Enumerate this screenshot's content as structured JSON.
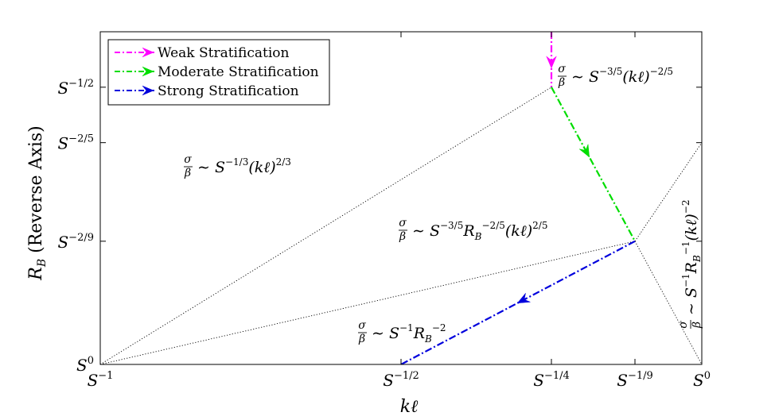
{
  "chart_data": {
    "type": "line",
    "title": "",
    "xlabel": "kℓ",
    "ylabel": "R_B (Reverse Axis)",
    "ylabel_parts": {
      "main": "R",
      "sub": "B",
      "rest": " (Reverse Axis)"
    },
    "x_scale": "log_S_exponent",
    "y_scale": "log_S_exponent_reversed",
    "xlim_exponent": [
      -1,
      0
    ],
    "ylim_exponent": [
      0,
      -0.6
    ],
    "x_ticks": [
      {
        "base": "S",
        "exp": "−1",
        "value": -1
      },
      {
        "base": "S",
        "exp": "−1/2",
        "value": -0.5
      },
      {
        "base": "S",
        "exp": "−1/4",
        "value": -0.25
      },
      {
        "base": "S",
        "exp": "−1/9",
        "value": -0.1111
      },
      {
        "base": "S",
        "exp": "0",
        "value": 0
      }
    ],
    "y_ticks": [
      {
        "base": "S",
        "exp": "−1/2",
        "value": -0.5
      },
      {
        "base": "S",
        "exp": "−2/5",
        "value": -0.4
      },
      {
        "base": "S",
        "exp": "−2/9",
        "value": -0.2222
      },
      {
        "base": "S",
        "exp": "0",
        "value": 0
      }
    ],
    "boundaries": [
      {
        "points": [
          [
            -1,
            0
          ],
          [
            -0.25,
            -0.5
          ]
        ]
      },
      {
        "points": [
          [
            -1,
            0
          ],
          [
            -0.1111,
            -0.2222
          ]
        ]
      },
      {
        "points": [
          [
            -0.1111,
            -0.2222
          ],
          [
            0,
            -0.4
          ]
        ]
      },
      {
        "points": [
          [
            -0.1111,
            -0.2222
          ],
          [
            0,
            0
          ]
        ]
      }
    ],
    "series": [
      {
        "name": "Weak Stratification",
        "color": "#ff00ff",
        "points": [
          [
            -0.25,
            -0.6
          ],
          [
            -0.25,
            -0.5
          ]
        ],
        "arrow_at": 0.55
      },
      {
        "name": "Moderate Stratification",
        "color": "#00dd00",
        "points": [
          [
            -0.25,
            -0.5
          ],
          [
            -0.1111,
            -0.2222
          ]
        ],
        "arrow_at": 0.42
      },
      {
        "name": "Strong Stratification",
        "color": "#0000dd",
        "points": [
          [
            -0.1111,
            -0.2222
          ],
          [
            -0.5,
            0
          ]
        ],
        "arrow_at": 0.48
      }
    ],
    "legend_position": "top-left",
    "annotations": [
      {
        "id": "weak",
        "terms": [
          {
            "t": "∼ S"
          },
          {
            "sup": "−3/5"
          },
          {
            "t": "(kℓ)"
          },
          {
            "sup": "−2/5"
          }
        ]
      },
      {
        "id": "upper-left",
        "terms": [
          {
            "t": "∼ S"
          },
          {
            "sup": "−1/3"
          },
          {
            "t": "(kℓ)"
          },
          {
            "sup": "2/3"
          }
        ]
      },
      {
        "id": "middle",
        "terms": [
          {
            "t": "∼ S"
          },
          {
            "sup": "−3/5"
          },
          {
            "t": "R"
          },
          {
            "sub": "B"
          },
          {
            "sup": "−2/5"
          },
          {
            "t": "(kℓ)"
          },
          {
            "sup": "2/5"
          }
        ]
      },
      {
        "id": "strong",
        "terms": [
          {
            "t": "∼ S"
          },
          {
            "sup": "−1"
          },
          {
            "t": "R"
          },
          {
            "sub": "B"
          },
          {
            "sup": "−2"
          }
        ]
      },
      {
        "id": "right-vertical",
        "terms": [
          {
            "t": "∼ S"
          },
          {
            "sup": "−1"
          },
          {
            "t": "R"
          },
          {
            "sub": "B"
          },
          {
            "sup": "−1"
          },
          {
            "t": "(kℓ)"
          },
          {
            "sup": "−2"
          }
        ]
      }
    ],
    "fraction": {
      "num": "σ",
      "den": "β"
    }
  }
}
